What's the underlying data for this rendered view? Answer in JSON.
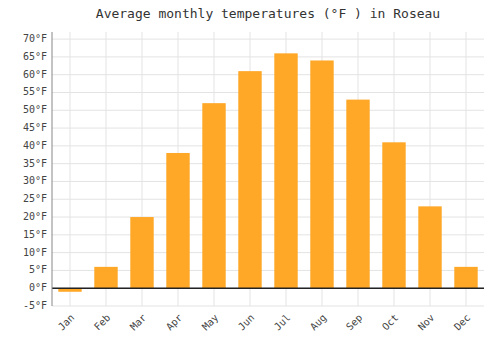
{
  "chart_data": {
    "type": "bar",
    "title": "Average monthly temperatures (°F ) in Roseau",
    "categories": [
      "Jan",
      "Feb",
      "Mar",
      "Apr",
      "May",
      "Jun",
      "Jul",
      "Aug",
      "Sep",
      "Oct",
      "Nov",
      "Dec"
    ],
    "values": [
      -1,
      6,
      20,
      38,
      52,
      61,
      66,
      64,
      53,
      41,
      23,
      6
    ],
    "color": "#FFA726",
    "ylim": [
      -5,
      72
    ],
    "yticks": [
      {
        "value": -5,
        "label": "-5°F"
      },
      {
        "value": 0,
        "label": "0°F"
      },
      {
        "value": 5,
        "label": "5°F"
      },
      {
        "value": 10,
        "label": "10°F"
      },
      {
        "value": 15,
        "label": "15°F"
      },
      {
        "value": 20,
        "label": "20°F"
      },
      {
        "value": 25,
        "label": "25°F"
      },
      {
        "value": 30,
        "label": "30°F"
      },
      {
        "value": 35,
        "label": "35°F"
      },
      {
        "value": 40,
        "label": "40°F"
      },
      {
        "value": 45,
        "label": "45°F"
      },
      {
        "value": 50,
        "label": "50°F"
      },
      {
        "value": 55,
        "label": "55°F"
      },
      {
        "value": 60,
        "label": "60°F"
      },
      {
        "value": 65,
        "label": "65°F"
      },
      {
        "value": 70,
        "label": "70°F"
      }
    ],
    "grid": true
  }
}
